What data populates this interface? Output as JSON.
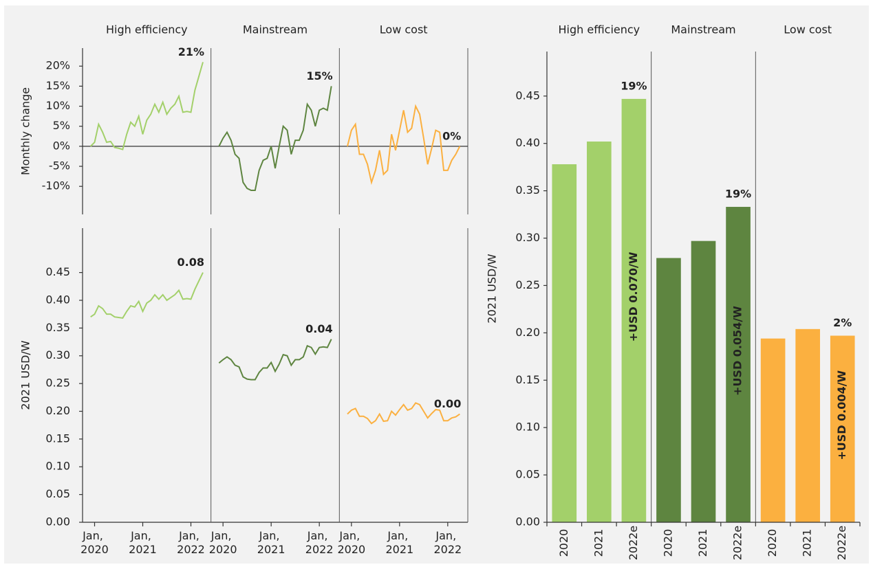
{
  "chart_data": [
    {
      "type": "line",
      "y_label": "Monthly change",
      "ylim": [
        -17,
        24.5
      ],
      "yticks": [
        {
          "value": 20,
          "label": "20%"
        },
        {
          "value": 15,
          "label": "15%"
        },
        {
          "value": 10,
          "label": "10%"
        },
        {
          "value": 5,
          "label": "5%"
        },
        {
          "value": 0,
          "label": "0%"
        },
        {
          "value": -5,
          "label": "-5%"
        },
        {
          "value": -10,
          "label": "-10%"
        }
      ],
      "zero_line": true,
      "xlim": [
        "2019-10",
        "2022-06"
      ],
      "x": [
        "2019-12",
        "2020-01",
        "2020-02",
        "2020-03",
        "2020-04",
        "2020-05",
        "2020-06",
        "2020-07",
        "2020-08",
        "2020-09",
        "2020-10",
        "2020-11",
        "2020-12",
        "2021-01",
        "2021-02",
        "2021-03",
        "2021-04",
        "2021-05",
        "2021-06",
        "2021-07",
        "2021-08",
        "2021-09",
        "2021-10",
        "2021-11",
        "2021-12",
        "2022-01",
        "2022-02",
        "2022-03",
        "2022-04"
      ],
      "series": [
        {
          "name": "High efficiency",
          "color": "#a3d06a",
          "end_label": "21%",
          "values": [
            0,
            1,
            5.5,
            3.5,
            1,
            1.2,
            -0.3,
            -0.5,
            -0.8,
            3,
            6,
            5,
            7.5,
            3,
            6.5,
            8,
            10.5,
            8.5,
            11,
            8,
            9.5,
            10.5,
            12.5,
            8.5,
            8.7,
            8.5,
            14,
            17.5,
            21
          ]
        },
        {
          "name": "Mainstream",
          "color": "#5e8540",
          "end_label": "15%",
          "values": [
            0,
            2,
            3.5,
            1.5,
            -2,
            -3,
            -9,
            -10.5,
            -11,
            -11,
            -6,
            -3.5,
            -3,
            0,
            -5.5,
            0,
            5,
            4,
            -2,
            1.5,
            1.5,
            4,
            10.5,
            9,
            5,
            9,
            9.5,
            9,
            15
          ]
        },
        {
          "name": "Low cost",
          "color": "#fbb040",
          "end_label": "0%",
          "values": [
            0,
            4,
            5.5,
            -2,
            -2,
            -4.5,
            -9,
            -6,
            -1,
            -7,
            -6,
            3,
            -1,
            4,
            9,
            3.5,
            4.5,
            10,
            8,
            2,
            -4.5,
            -0.5,
            4,
            3.5,
            -6,
            -6,
            -3.5,
            -2,
            0
          ]
        }
      ]
    },
    {
      "type": "line",
      "y_label": "2021 USD/W",
      "ylim": [
        0,
        0.53
      ],
      "yticks": [
        {
          "value": 0,
          "label": "0.00"
        },
        {
          "value": 0.05,
          "label": "0.05"
        },
        {
          "value": 0.1,
          "label": "0.10"
        },
        {
          "value": 0.15,
          "label": "0.15"
        },
        {
          "value": 0.2,
          "label": "0.20"
        },
        {
          "value": 0.25,
          "label": "0.25"
        },
        {
          "value": 0.3,
          "label": "0.30"
        },
        {
          "value": 0.35,
          "label": "0.35"
        },
        {
          "value": 0.4,
          "label": "0.40"
        },
        {
          "value": 0.45,
          "label": "0.45"
        }
      ],
      "xlim": [
        "2019-10",
        "2022-06"
      ],
      "x": [
        "2019-12",
        "2020-01",
        "2020-02",
        "2020-03",
        "2020-04",
        "2020-05",
        "2020-06",
        "2020-07",
        "2020-08",
        "2020-09",
        "2020-10",
        "2020-11",
        "2020-12",
        "2021-01",
        "2021-02",
        "2021-03",
        "2021-04",
        "2021-05",
        "2021-06",
        "2021-07",
        "2021-08",
        "2021-09",
        "2021-10",
        "2021-11",
        "2021-12",
        "2022-01",
        "2022-02",
        "2022-03",
        "2022-04"
      ],
      "xticks": [
        {
          "value": "2020-01",
          "label": "Jan, 2020"
        },
        {
          "value": "2021-01",
          "label": "Jan, 2021"
        },
        {
          "value": "2022-01",
          "label": "Jan, 2022"
        }
      ],
      "series": [
        {
          "color": "#a3d06a",
          "end_label": "0.08",
          "values": [
            0.37,
            0.375,
            0.39,
            0.385,
            0.375,
            0.375,
            0.37,
            0.369,
            0.368,
            0.38,
            0.39,
            0.388,
            0.398,
            0.38,
            0.395,
            0.4,
            0.41,
            0.402,
            0.41,
            0.4,
            0.405,
            0.41,
            0.418,
            0.402,
            0.403,
            0.402,
            0.42,
            0.435,
            0.45
          ]
        },
        {
          "color": "#5e8540",
          "end_label": "0.04",
          "values": [
            0.287,
            0.293,
            0.298,
            0.293,
            0.283,
            0.28,
            0.262,
            0.258,
            0.257,
            0.257,
            0.27,
            0.278,
            0.278,
            0.288,
            0.272,
            0.285,
            0.302,
            0.3,
            0.283,
            0.293,
            0.293,
            0.298,
            0.318,
            0.315,
            0.303,
            0.315,
            0.316,
            0.315,
            0.33
          ]
        },
        {
          "color": "#fbb040",
          "end_label": "0.00",
          "values": [
            0.195,
            0.202,
            0.205,
            0.191,
            0.191,
            0.187,
            0.178,
            0.183,
            0.195,
            0.182,
            0.183,
            0.2,
            0.193,
            0.203,
            0.212,
            0.202,
            0.205,
            0.215,
            0.212,
            0.2,
            0.188,
            0.196,
            0.203,
            0.202,
            0.183,
            0.183,
            0.188,
            0.19,
            0.195
          ]
        }
      ]
    },
    {
      "type": "bar",
      "y_label": "2021 USD/W",
      "ylim": [
        0,
        0.497
      ],
      "yticks": [
        {
          "value": 0,
          "label": "0.00"
        },
        {
          "value": 0.05,
          "label": "0.05"
        },
        {
          "value": 0.1,
          "label": "0.10"
        },
        {
          "value": 0.15,
          "label": "0.15"
        },
        {
          "value": 0.2,
          "label": "0.20"
        },
        {
          "value": 0.25,
          "label": "0.25"
        },
        {
          "value": 0.3,
          "label": "0.30"
        },
        {
          "value": 0.35,
          "label": "0.35"
        },
        {
          "value": 0.4,
          "label": "0.40"
        },
        {
          "value": 0.45,
          "label": "0.45"
        }
      ],
      "groups": [
        {
          "name": "High efficiency",
          "color": "#a3d06a",
          "categories": [
            "2020",
            "2021",
            "2022e"
          ],
          "values": [
            0.378,
            0.402,
            0.447
          ],
          "change_label": "19%",
          "increase_label": "+USD 0.070/W"
        },
        {
          "name": "Mainstream",
          "color": "#5e8540",
          "categories": [
            "2020",
            "2021",
            "2022e"
          ],
          "values": [
            0.279,
            0.297,
            0.333
          ],
          "change_label": "19%",
          "increase_label": "+USD 0.054/W"
        },
        {
          "name": "Low cost",
          "color": "#fbb040",
          "categories": [
            "2020",
            "2021",
            "2022e"
          ],
          "values": [
            0.194,
            0.204,
            0.197
          ],
          "change_label": "2%",
          "increase_label": "+USD 0.004/W"
        }
      ]
    }
  ]
}
